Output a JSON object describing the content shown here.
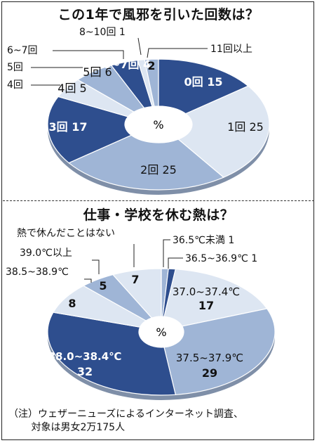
{
  "colors": {
    "dark": "#2e4e8e",
    "medium": "#9fb5d6",
    "light": "#dde6f2",
    "edge": "#ffffff"
  },
  "chart_data": [
    {
      "type": "pie",
      "title": "この1年で風邪を引いた回数は？",
      "center_label": "%",
      "slices": [
        {
          "label": "0回",
          "value": 15,
          "shade": "dark"
        },
        {
          "label": "1回",
          "value": 25,
          "shade": "light"
        },
        {
          "label": "2回",
          "value": 25,
          "shade": "medium"
        },
        {
          "label": "3回",
          "value": 17,
          "shade": "dark"
        },
        {
          "label": "4回",
          "value": 5,
          "shade": "light"
        },
        {
          "label": "5回",
          "value": 6,
          "shade": "medium"
        },
        {
          "label": "6~7回",
          "value": 4,
          "shade": "dark"
        },
        {
          "label": "8~10回",
          "value": 1,
          "shade": "light"
        },
        {
          "label": "11回以上",
          "value": 2,
          "shade": "medium"
        }
      ]
    },
    {
      "type": "pie",
      "title": "仕事・学校を休む熱は？",
      "center_label": "%",
      "slices": [
        {
          "label": "36.5℃未満",
          "value": 1,
          "shade": "medium"
        },
        {
          "label": "36.5~36.9℃",
          "value": 1,
          "shade": "dark"
        },
        {
          "label": "37.0~37.4℃",
          "value": 17,
          "shade": "light"
        },
        {
          "label": "37.5~37.9℃",
          "value": 29,
          "shade": "medium"
        },
        {
          "label": "38.0~38.4℃",
          "value": 32,
          "shade": "dark"
        },
        {
          "label": "38.5~38.9℃",
          "value": 8,
          "shade": "light"
        },
        {
          "label": "39.0℃以上",
          "value": 5,
          "shade": "medium"
        },
        {
          "label": "熱で休んだことはない",
          "value": 7,
          "shade": "light"
        }
      ]
    }
  ],
  "footnote": {
    "line1": "（注）ウェザーニューズによるインターネット調査、",
    "line2": "　　 対象は男女2万175人"
  }
}
